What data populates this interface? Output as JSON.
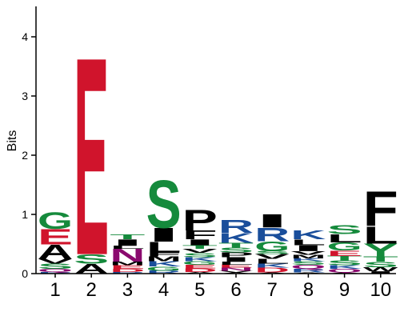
{
  "chart_data": {
    "type": "sequence-logo",
    "title": "",
    "xlabel": "",
    "ylabel": "Bits",
    "ylim": [
      0,
      4.5
    ],
    "y_ticks": [
      "0",
      "1",
      "2",
      "3",
      "4"
    ],
    "positions": [
      "1",
      "2",
      "3",
      "4",
      "5",
      "6",
      "7",
      "8",
      "9",
      "10"
    ],
    "colors": {
      "G": "#158a3c",
      "S": "#158a3c",
      "T": "#158a3c",
      "Y": "#158a3c",
      "C": "#158a3c",
      "E": "#d0142c",
      "D": "#d0142c",
      "A": "#000000",
      "V": "#000000",
      "L": "#000000",
      "I": "#000000",
      "P": "#000000",
      "F": "#000000",
      "M": "#000000",
      "W": "#000000",
      "R": "#1a4e9b",
      "K": "#1a4e9b",
      "H": "#1a4e9b",
      "Q": "#8a0a6e",
      "N": "#8a0a6e"
    },
    "stacks": [
      [
        [
          "R",
          0.03
        ],
        [
          "Q",
          0.05
        ],
        [
          "S",
          0.09
        ],
        [
          "V",
          0.08
        ],
        [
          "A",
          0.24
        ],
        [
          "E",
          0.27
        ],
        [
          "G",
          0.29
        ]
      ],
      [
        [
          "A",
          0.17
        ],
        [
          "S",
          0.16
        ],
        [
          "E",
          3.42
        ]
      ],
      [
        [
          "R",
          0.03
        ],
        [
          "D",
          0.05
        ],
        [
          "E",
          0.06
        ],
        [
          "M",
          0.06
        ],
        [
          "N",
          0.22
        ],
        [
          "L",
          0.05
        ],
        [
          "I",
          0.11
        ],
        [
          "T",
          0.08
        ]
      ],
      [
        [
          "R",
          0.05
        ],
        [
          "G",
          0.07
        ],
        [
          "K",
          0.09
        ],
        [
          "M",
          0.08
        ],
        [
          "F",
          0.07
        ],
        [
          "L",
          0.18
        ],
        [
          "I",
          0.24
        ],
        [
          "S",
          0.83
        ]
      ],
      [
        [
          "A",
          0.03
        ],
        [
          "D",
          0.06
        ],
        [
          "E",
          0.06
        ],
        [
          "G",
          0.06
        ],
        [
          "K",
          0.07
        ],
        [
          "S",
          0.07
        ],
        [
          "V",
          0.07
        ],
        [
          "T",
          0.06
        ],
        [
          "I",
          0.1
        ],
        [
          "F",
          0.15
        ],
        [
          "P",
          0.36
        ]
      ],
      [
        [
          "A",
          0.02
        ],
        [
          "V",
          0.03
        ],
        [
          "N",
          0.05
        ],
        [
          "E",
          0.05
        ],
        [
          "L",
          0.05
        ],
        [
          "I",
          0.08
        ],
        [
          "P",
          0.08
        ],
        [
          "S",
          0.08
        ],
        [
          "T",
          0.08
        ],
        [
          "K",
          0.17
        ],
        [
          "R",
          0.22
        ]
      ],
      [
        [
          "A",
          0.02
        ],
        [
          "D",
          0.08
        ],
        [
          "K",
          0.07
        ],
        [
          "L",
          0.08
        ],
        [
          "V",
          0.08
        ],
        [
          "S",
          0.05
        ],
        [
          "G",
          0.17
        ],
        [
          "R",
          0.23
        ],
        [
          "I",
          0.23
        ]
      ],
      [
        [
          "A",
          0.02
        ],
        [
          "R",
          0.06
        ],
        [
          "Q",
          0.07
        ],
        [
          "S",
          0.06
        ],
        [
          "K",
          0.05
        ],
        [
          "M",
          0.06
        ],
        [
          "V",
          0.06
        ],
        [
          "I",
          0.1
        ],
        [
          "L",
          0.1
        ],
        [
          "K",
          0.15
        ]
      ],
      [
        [
          "A",
          0.02
        ],
        [
          "Q",
          0.06
        ],
        [
          "K",
          0.06
        ],
        [
          "S",
          0.08
        ],
        [
          "T",
          0.08
        ],
        [
          "E",
          0.09
        ],
        [
          "G",
          0.14
        ],
        [
          "L",
          0.14
        ],
        [
          "S",
          0.15
        ]
      ],
      [
        [
          "I",
          0.04
        ],
        [
          "W",
          0.07
        ],
        [
          "S",
          0.09
        ],
        [
          "T",
          0.09
        ],
        [
          "Y",
          0.22
        ],
        [
          "L",
          0.3
        ],
        [
          "F",
          0.6
        ]
      ]
    ]
  }
}
